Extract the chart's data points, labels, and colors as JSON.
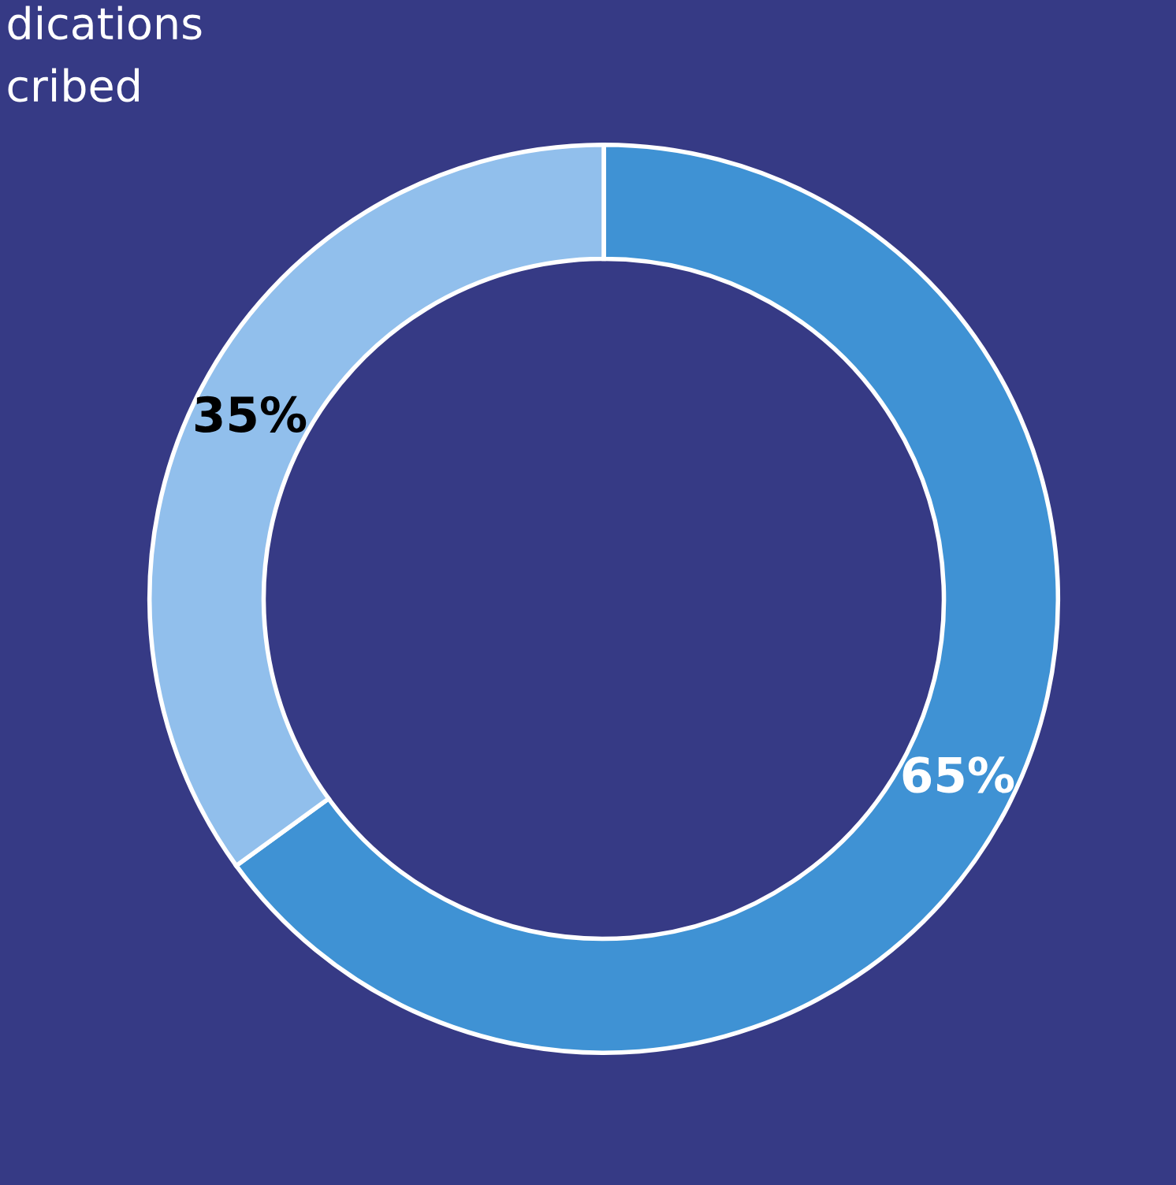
{
  "chart_data": {
    "type": "donut",
    "title": "dications\ncribed",
    "categories": [
      null,
      null
    ],
    "values": [
      65,
      35
    ],
    "colors": [
      "#3f92d4",
      "#91bfec"
    ],
    "value_labels": [
      "65%",
      "35%"
    ]
  }
}
